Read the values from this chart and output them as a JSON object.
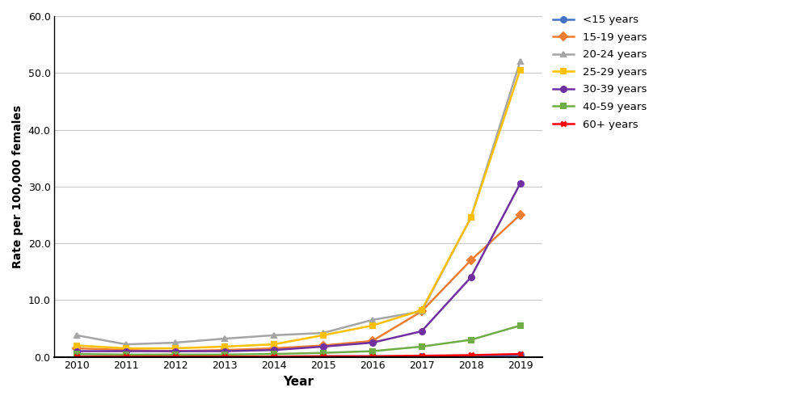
{
  "years": [
    2010,
    2011,
    2012,
    2013,
    2014,
    2015,
    2016,
    2017,
    2018,
    2019
  ],
  "series": [
    {
      "label": "<15 years",
      "color": "#4472C4",
      "marker": "o",
      "values": [
        0.1,
        0.1,
        0.1,
        0.05,
        0.05,
        0.1,
        0.1,
        0.1,
        0.1,
        0.3
      ]
    },
    {
      "label": "15-19 years",
      "color": "#ED7D31",
      "marker": "D",
      "values": [
        1.5,
        1.2,
        1.0,
        1.2,
        1.5,
        2.0,
        2.8,
        8.0,
        17.0,
        25.0
      ]
    },
    {
      "label": "20-24 years",
      "color": "#A5A5A5",
      "marker": "^",
      "values": [
        3.8,
        2.2,
        2.5,
        3.2,
        3.8,
        4.2,
        6.5,
        8.0,
        24.5,
        52.0
      ]
    },
    {
      "label": "25-29 years",
      "color": "#FFC000",
      "marker": "s",
      "values": [
        2.0,
        1.5,
        1.5,
        1.8,
        2.2,
        3.8,
        5.5,
        8.2,
        24.5,
        50.5
      ]
    },
    {
      "label": "30-39 years",
      "color": "#7030A0",
      "marker": "o",
      "values": [
        1.0,
        1.0,
        1.0,
        1.0,
        1.2,
        1.8,
        2.5,
        4.5,
        14.0,
        30.5
      ]
    },
    {
      "label": "40-59 years",
      "color": "#70AD47",
      "marker": "s",
      "values": [
        0.5,
        0.4,
        0.4,
        0.4,
        0.5,
        0.7,
        1.0,
        1.8,
        3.0,
        5.5
      ]
    },
    {
      "label": "60+ years",
      "color": "#FF0000",
      "marker": "x",
      "values": [
        0.05,
        0.05,
        0.05,
        0.05,
        0.05,
        0.1,
        0.1,
        0.2,
        0.3,
        0.5
      ]
    }
  ],
  "xlabel": "Year",
  "ylabel": "Rate per 100,000 females",
  "ylim": [
    0,
    60
  ],
  "yticks": [
    0.0,
    10.0,
    20.0,
    30.0,
    40.0,
    50.0,
    60.0
  ],
  "background_color": "#FFFFFF",
  "grid_color": "#C8C8C8"
}
